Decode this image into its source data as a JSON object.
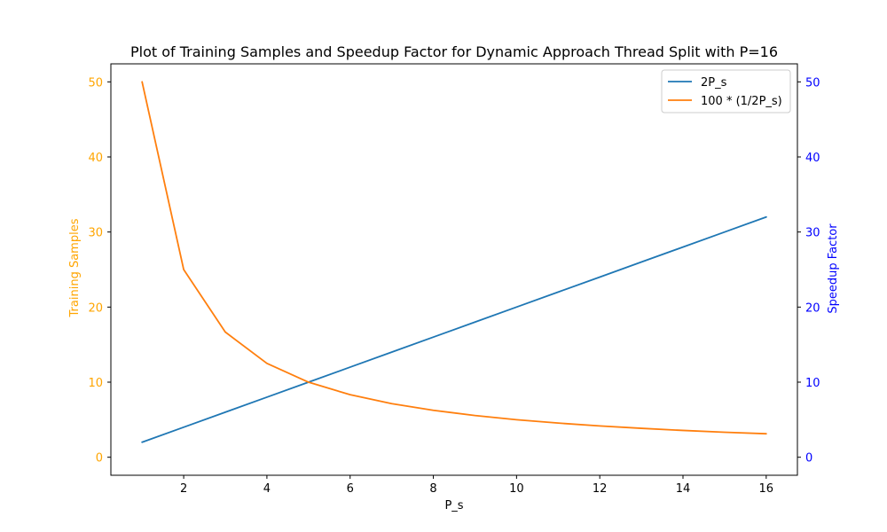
{
  "chart_data": {
    "type": "line",
    "title": "Plot of Training Samples and Speedup Factor for Dynamic Approach Thread Split with P=16",
    "xlabel": "P_s",
    "ylabel_left": "Training Samples",
    "ylabel_right": "Speedup Factor",
    "x": [
      1,
      2,
      3,
      4,
      5,
      6,
      7,
      8,
      9,
      10,
      11,
      12,
      13,
      14,
      15,
      16
    ],
    "xlim": [
      0.25,
      16.75
    ],
    "xticks": [
      2,
      4,
      6,
      8,
      10,
      12,
      14,
      16
    ],
    "ylim_left": [
      -2.4,
      52.4
    ],
    "ylim_right": [
      -2.4,
      52.4
    ],
    "yticks_left": [
      0,
      10,
      20,
      30,
      40,
      50
    ],
    "yticks_right": [
      0,
      10,
      20,
      30,
      40,
      50
    ],
    "grid": false,
    "legend_position": "top-right",
    "series": [
      {
        "name": "2P_s",
        "axis": "right",
        "color": "#1f77b4",
        "values": [
          2,
          4,
          6,
          8,
          10,
          12,
          14,
          16,
          18,
          20,
          22,
          24,
          26,
          28,
          30,
          32
        ]
      },
      {
        "name": "100 * (1/2P_s)",
        "axis": "left",
        "color": "#ff7f0e",
        "values": [
          50,
          25,
          16.67,
          12.5,
          10,
          8.33,
          7.14,
          6.25,
          5.56,
          5,
          4.55,
          4.17,
          3.85,
          3.57,
          3.33,
          3.13
        ]
      }
    ],
    "colors": {
      "left_axis": "#ffa500",
      "right_axis": "#0000ff",
      "axis_line": "#000000"
    }
  }
}
